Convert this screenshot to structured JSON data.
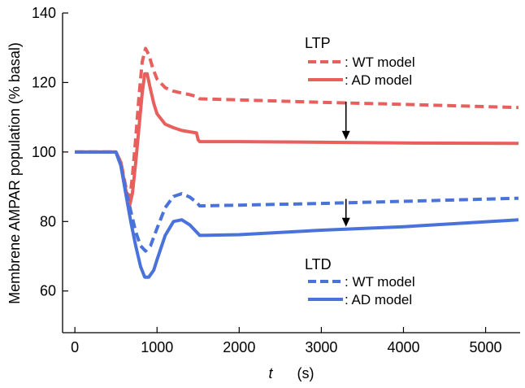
{
  "chart_data": {
    "type": "line",
    "title": "",
    "xlabel_var": "t",
    "xlabel_unit": "(s)",
    "ylabel": "Membrene AMPAR population (% basal)",
    "xlim": [
      -150,
      5420
    ],
    "ylim": [
      48,
      140
    ],
    "xticks": [
      0,
      1000,
      2000,
      3000,
      4000,
      5000
    ],
    "yticks": [
      60,
      80,
      100,
      120,
      140
    ],
    "grid": false,
    "colors": {
      "red": "#e8605e",
      "blue": "#4a72db"
    },
    "legend": {
      "ltp_title": "LTP",
      "ltd_title": "LTD",
      "wt_label": ": WT model",
      "ad_label": ": AD model",
      "placement": "right"
    },
    "arrows": [
      {
        "x": 3300,
        "from": 114.5,
        "to": 103.5
      },
      {
        "x": 3300,
        "from": 86.5,
        "to": 78.5
      }
    ],
    "series": [
      {
        "name": "LTP WT model",
        "group": "LTP",
        "color": "red",
        "dashed": true,
        "x": [
          0,
          500,
          560,
          620,
          660,
          700,
          740,
          780,
          820,
          860,
          900,
          950,
          1000,
          1100,
          1200,
          1300,
          1400,
          1480,
          1520,
          2000,
          3000,
          4000,
          5400
        ],
        "y": [
          100,
          100,
          97,
          90,
          85,
          93,
          104,
          116,
          126,
          129.8,
          128,
          124,
          121,
          118.5,
          117.5,
          117,
          116.5,
          116,
          115.3,
          115,
          114.3,
          113.7,
          112.8
        ]
      },
      {
        "name": "LTP AD model",
        "group": "LTP",
        "color": "red",
        "dashed": false,
        "x": [
          0,
          500,
          560,
          620,
          660,
          700,
          740,
          780,
          820,
          850,
          880,
          920,
          960,
          1000,
          1100,
          1200,
          1300,
          1400,
          1480,
          1500,
          1520,
          2000,
          3000,
          4000,
          5400
        ],
        "y": [
          100,
          100,
          97,
          89,
          84,
          88,
          97,
          107,
          117,
          122.5,
          122.5,
          118,
          114,
          111,
          108,
          107,
          106.2,
          105.8,
          105.5,
          103.5,
          103,
          103,
          102.8,
          102.6,
          102.5
        ]
      },
      {
        "name": "LTD WT model",
        "group": "LTD",
        "color": "blue",
        "dashed": true,
        "x": [
          0,
          500,
          560,
          620,
          680,
          740,
          800,
          860,
          920,
          1000,
          1100,
          1200,
          1300,
          1400,
          1480,
          1520,
          2000,
          3000,
          4000,
          5400
        ],
        "y": [
          100,
          100,
          96,
          89,
          83,
          77,
          73,
          71.5,
          73,
          78,
          84,
          87.2,
          88,
          87,
          85.5,
          84.5,
          84.7,
          85.2,
          85.8,
          86.7
        ]
      },
      {
        "name": "LTD AD model",
        "group": "LTD",
        "color": "blue",
        "dashed": false,
        "x": [
          0,
          500,
          560,
          620,
          680,
          740,
          800,
          850,
          900,
          960,
          1000,
          1100,
          1200,
          1300,
          1400,
          1480,
          1520,
          2000,
          3000,
          4000,
          5400
        ],
        "y": [
          100,
          100,
          96,
          88,
          80,
          73,
          67,
          64,
          64,
          66,
          69,
          76,
          80,
          80.5,
          79,
          77,
          76,
          76.2,
          77.5,
          78.5,
          80.5
        ]
      }
    ]
  }
}
